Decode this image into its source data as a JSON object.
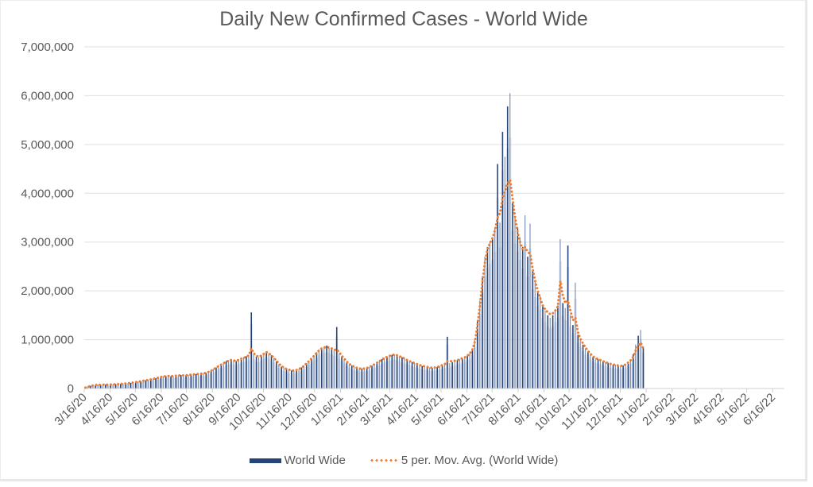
{
  "chart_data": {
    "type": "bar",
    "title": "Daily New Confirmed Cases - World Wide",
    "xlabel": "",
    "ylabel": "",
    "ylim": [
      0,
      7000000
    ],
    "yticks": [
      "0",
      "1,000,000",
      "2,000,000",
      "3,000,000",
      "4,000,000",
      "5,000,000",
      "6,000,000",
      "7,000,000"
    ],
    "ytick_values": [
      0,
      1000000,
      2000000,
      3000000,
      4000000,
      5000000,
      6000000,
      7000000
    ],
    "grid": true,
    "x_start": "3/16/20",
    "x_step_days": 3,
    "xtick_labels": [
      "3/16/20",
      "4/16/20",
      "5/16/20",
      "6/16/20",
      "7/16/20",
      "8/16/20",
      "9/16/20",
      "10/16/20",
      "11/16/20",
      "12/16/20",
      "1/16/21",
      "2/16/21",
      "3/16/21",
      "4/16/21",
      "5/16/21",
      "6/16/21",
      "7/16/21",
      "8/16/21",
      "9/16/21",
      "10/16/21",
      "11/16/21",
      "12/16/21",
      "1/16/22",
      "2/16/22",
      "3/16/22",
      "4/16/22",
      "5/16/22",
      "6/16/22"
    ],
    "xtick_day_offsets": [
      0,
      31,
      61,
      92,
      122,
      153,
      184,
      214,
      245,
      275,
      306,
      337,
      365,
      396,
      426,
      457,
      487,
      518,
      549,
      579,
      610,
      640,
      671,
      702,
      730,
      761,
      791,
      822
    ],
    "legend_position": "bottom",
    "series": [
      {
        "name": "World Wide",
        "type": "bar",
        "color": "#264478",
        "values": [
          15000,
          40000,
          55000,
          70000,
          75000,
          80000,
          78000,
          85000,
          80000,
          75000,
          85000,
          88000,
          90000,
          92000,
          95000,
          100000,
          105000,
          110000,
          115000,
          125000,
          130000,
          140000,
          150000,
          160000,
          170000,
          180000,
          190000,
          200000,
          210000,
          225000,
          240000,
          250000,
          255000,
          260000,
          250000,
          255000,
          265000,
          270000,
          275000,
          265000,
          270000,
          280000,
          285000,
          290000,
          295000,
          300000,
          305000,
          310000,
          320000,
          340000,
          370000,
          400000,
          430000,
          470000,
          500000,
          530000,
          560000,
          580000,
          600000,
          580000,
          560000,
          600000,
          620000,
          640000,
          660000,
          680000,
          1560000,
          700000,
          650000,
          640000,
          680000,
          720000,
          760000,
          720000,
          680000,
          620000,
          560000,
          500000,
          450000,
          420000,
          400000,
          380000,
          370000,
          360000,
          380000,
          400000,
          430000,
          470000,
          520000,
          570000,
          620000,
          680000,
          740000,
          800000,
          840000,
          860000,
          880000,
          850000,
          820000,
          780000,
          1260000,
          720000,
          660000,
          600000,
          540000,
          500000,
          470000,
          440000,
          420000,
          410000,
          400000,
          410000,
          420000,
          440000,
          470000,
          500000,
          530000,
          560000,
          600000,
          630000,
          650000,
          670000,
          690000,
          700000,
          680000,
          660000,
          640000,
          610000,
          580000,
          560000,
          540000,
          520000,
          500000,
          480000,
          460000,
          450000,
          440000,
          430000,
          420000,
          430000,
          440000,
          460000,
          480000,
          500000,
          1060000,
          520000,
          540000,
          560000,
          580000,
          600000,
          620000,
          640000,
          680000,
          720000,
          800000,
          1000000,
          1400000,
          1800000,
          2300000,
          2700000,
          2900000,
          3000000,
          3100000,
          3300000,
          4600000,
          3400000,
          5260000,
          4750000,
          5780000,
          6050000,
          3800000,
          3500000,
          3300000,
          3100000,
          2900000,
          3550000,
          2700000,
          3380000,
          2400000,
          2200000,
          2000000,
          1900000,
          1700000,
          1600000,
          1500000,
          1450000,
          1500000,
          1600000,
          1700000,
          3060000,
          1750000,
          1650000,
          2930000,
          1500000,
          1300000,
          2170000,
          1100000,
          1000000,
          900000,
          820000,
          760000,
          700000,
          650000,
          620000,
          600000,
          580000,
          560000,
          540000,
          520000,
          500000,
          490000,
          480000,
          470000,
          460000,
          470000,
          500000,
          540000,
          600000,
          700000,
          900000,
          1080000,
          1200000,
          850000
        ]
      },
      {
        "name": "5 per. Mov. Avg. (World Wide)",
        "type": "line",
        "style": "dotted",
        "color": "#ED7D31",
        "values": [
          20000,
          35000,
          50000,
          62000,
          70000,
          75000,
          77000,
          80000,
          80000,
          80000,
          82000,
          85000,
          88000,
          90000,
          93000,
          98000,
          103000,
          108000,
          114000,
          122000,
          130000,
          138000,
          148000,
          158000,
          168000,
          178000,
          188000,
          198000,
          208000,
          222000,
          236000,
          246000,
          252000,
          255000,
          252000,
          255000,
          262000,
          268000,
          270000,
          268000,
          270000,
          278000,
          283000,
          288000,
          293000,
          298000,
          303000,
          310000,
          320000,
          340000,
          365000,
          395000,
          425000,
          460000,
          490000,
          520000,
          550000,
          570000,
          585000,
          575000,
          565000,
          590000,
          610000,
          630000,
          650000,
          680000,
          820000,
          720000,
          670000,
          650000,
          675000,
          710000,
          745000,
          720000,
          680000,
          625000,
          570000,
          510000,
          460000,
          425000,
          400000,
          385000,
          372000,
          365000,
          380000,
          400000,
          428000,
          465000,
          515000,
          565000,
          615000,
          670000,
          730000,
          780000,
          820000,
          840000,
          850000,
          840000,
          820000,
          790000,
          800000,
          740000,
          670000,
          610000,
          550000,
          505000,
          472000,
          445000,
          425000,
          412000,
          405000,
          410000,
          420000,
          440000,
          468000,
          498000,
          528000,
          558000,
          595000,
          625000,
          648000,
          668000,
          685000,
          695000,
          680000,
          660000,
          640000,
          612000,
          582000,
          560000,
          540000,
          520000,
          500000,
          482000,
          464000,
          452000,
          442000,
          432000,
          424000,
          430000,
          440000,
          458000,
          478000,
          498000,
          560000,
          560000,
          560000,
          570000,
          580000,
          600000,
          620000,
          640000,
          670000,
          720000,
          800000,
          960000,
          1300000,
          1700000,
          2200000,
          2600000,
          2850000,
          2980000,
          3080000,
          3250000,
          3500000,
          3600000,
          3900000,
          4050000,
          4200000,
          4270000,
          3900000,
          3500000,
          3200000,
          3000000,
          2850000,
          2900000,
          2800000,
          2750000,
          2450000,
          2200000,
          2000000,
          1850000,
          1700000,
          1620000,
          1560000,
          1520000,
          1540000,
          1600000,
          1680000,
          2200000,
          1900000,
          1750000,
          1800000,
          1600000,
          1400000,
          1450000,
          1150000,
          1020000,
          920000,
          840000,
          770000,
          710000,
          660000,
          625000,
          600000,
          580000,
          560000,
          540000,
          520000,
          505000,
          492000,
          482000,
          472000,
          464000,
          470000,
          495000,
          530000,
          580000,
          650000,
          780000,
          880000,
          940000,
          820000
        ]
      }
    ]
  },
  "legend": {
    "bar_label": "World Wide",
    "line_label": "5 per. Mov. Avg. (World Wide)"
  }
}
